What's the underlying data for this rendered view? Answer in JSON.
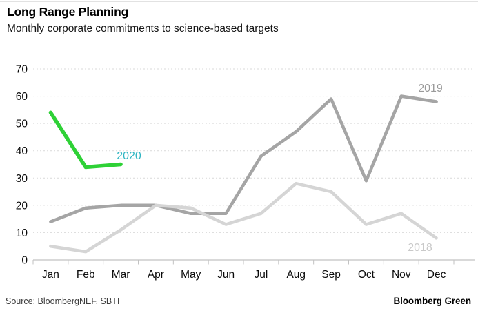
{
  "header": {
    "title": "Long Range Planning",
    "subtitle": "Monthly corporate commitments to science-based targets"
  },
  "footer": {
    "source": "Source: BloombergNEF, SBTI",
    "brand": "Bloomberg Green"
  },
  "chart_data": {
    "type": "line",
    "title": "Long Range Planning",
    "subtitle": "Monthly corporate commitments to science-based targets",
    "categories": [
      "Jan",
      "Feb",
      "Mar",
      "Apr",
      "May",
      "Jun",
      "Jul",
      "Aug",
      "Sep",
      "Oct",
      "Nov",
      "Dec"
    ],
    "ylim": [
      0,
      70
    ],
    "yticks": [
      0,
      10,
      20,
      30,
      40,
      50,
      60,
      70
    ],
    "grid": "horizontal-dashed",
    "legend_position": "inline-labels",
    "series": [
      {
        "name": "2019",
        "color": "#a5a5a5",
        "label_color": "#9a9a9a",
        "values": [
          14,
          19,
          20,
          20,
          17,
          17,
          38,
          47,
          59,
          29,
          60,
          58
        ]
      },
      {
        "name": "2018",
        "color": "#d5d5d5",
        "label_color": "#c9c9c9",
        "values": [
          5,
          3,
          11,
          20,
          19,
          13,
          17,
          28,
          25,
          13,
          17,
          8
        ]
      },
      {
        "name": "2020",
        "color": "#2ed136",
        "label_color": "#2fb5c2",
        "values": [
          54,
          34,
          35,
          null,
          null,
          null,
          null,
          null,
          null,
          null,
          null,
          null
        ]
      }
    ]
  }
}
